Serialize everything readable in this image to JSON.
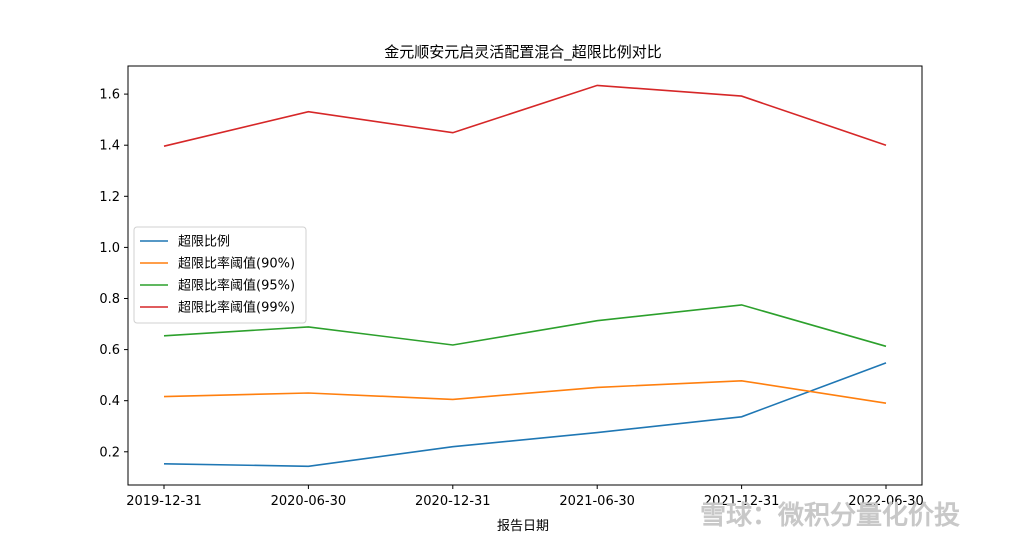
{
  "chart_data": {
    "type": "line",
    "title": "金元顺安元启灵活配置混合_超限比例对比",
    "xlabel": "报告日期",
    "ylabel": "",
    "categories": [
      "2019-12-31",
      "2020-06-30",
      "2020-12-31",
      "2021-06-30",
      "2021-12-31",
      "2022-06-30"
    ],
    "ylim": [
      0.07,
      1.71
    ],
    "yticks": [
      "0.2",
      "0.4",
      "0.6",
      "0.8",
      "1.0",
      "1.2",
      "1.4",
      "1.6"
    ],
    "grid": false,
    "legend_position": "center-left",
    "series": [
      {
        "name": "超限比例",
        "color": "#1f77b4",
        "values": [
          0.153,
          0.143,
          0.22,
          0.275,
          0.337,
          0.548
        ]
      },
      {
        "name": "超限比率阈值(90%)",
        "color": "#ff7f0e",
        "values": [
          0.416,
          0.43,
          0.405,
          0.452,
          0.478,
          0.39
        ]
      },
      {
        "name": "超限比率阈值(95%)",
        "color": "#2ca02c",
        "values": [
          0.654,
          0.689,
          0.618,
          0.713,
          0.775,
          0.613
        ]
      },
      {
        "name": "超限比率阈值(99%)",
        "color": "#d62728",
        "values": [
          1.396,
          1.531,
          1.449,
          1.634,
          1.592,
          1.4
        ]
      }
    ]
  },
  "watermark": "雪球：微积分量化价投"
}
